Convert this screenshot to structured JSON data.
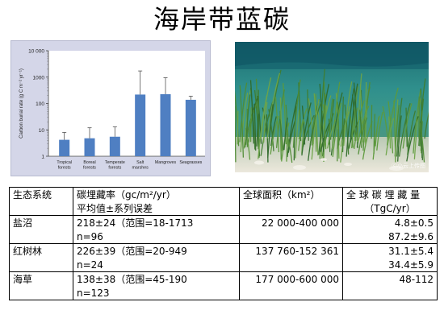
{
  "page": {
    "title": "海岸带蓝碳"
  },
  "chart_data": {
    "type": "bar",
    "ylabel": "Carbon burial rate (g C m⁻² yr⁻¹)",
    "y_scale": "log",
    "ylim": [
      1,
      10000
    ],
    "y_ticks": [
      1,
      10,
      100,
      1000,
      10000
    ],
    "y_tick_labels": [
      "1",
      "10",
      "100",
      "1000",
      "10 000"
    ],
    "categories": [
      [
        "Tropical",
        "forests"
      ],
      [
        "Boreal",
        "forests"
      ],
      [
        "Temperate",
        "forests"
      ],
      [
        "Salt",
        "marshes"
      ],
      [
        "Mangroves"
      ],
      [
        "Seagrasses"
      ]
    ],
    "values": [
      4.2,
      4.8,
      5.5,
      218,
      226,
      138
    ],
    "error_upper": [
      8,
      12,
      13,
      1713,
      949,
      190
    ],
    "bar_color": "#4f7fc2"
  },
  "photo": {
    "watermark": "ⓒ小云上传图"
  },
  "table": {
    "headers": [
      [
        "生态系统"
      ],
      [
        "碳埋藏率（gc/m²/yr）",
        "平均值±系列误差"
      ],
      [
        "全球面积（km²）"
      ],
      [
        "全 球 碳 埋 藏 量",
        "（TgC/yr）"
      ]
    ],
    "rows": [
      {
        "name": "盐沼",
        "rate": [
          "218±24（范围=18-1713",
          "n=96"
        ],
        "area": "22 000-400 000",
        "burial": [
          "4.8±0.5",
          "87.2±9.6"
        ]
      },
      {
        "name": "红树林",
        "rate": [
          "226±39（范围=20-949",
          "n=24"
        ],
        "area": "137 760-152 361",
        "burial": [
          "31.1±5.4",
          "34.4±5.9"
        ]
      },
      {
        "name": "海草",
        "rate": [
          "138±38（范围=45-190",
          "n=123"
        ],
        "area": "177 000-600 000",
        "burial": [
          "48-112"
        ]
      }
    ]
  }
}
